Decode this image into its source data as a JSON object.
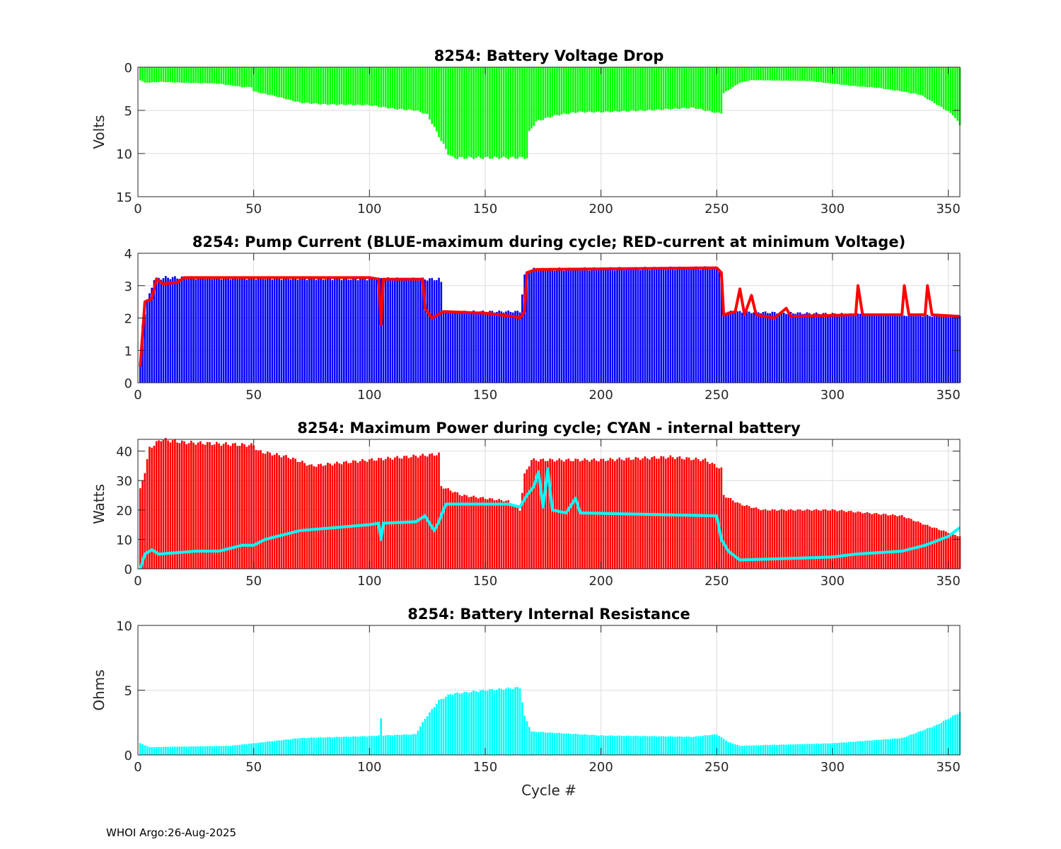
{
  "footer": "WHOI Argo:26-Aug-2025",
  "chart_data": [
    {
      "type": "bar",
      "title": "8254: Battery Voltage Drop",
      "ylabel": "Volts",
      "xlabel": "",
      "xlim": [
        0,
        355
      ],
      "ylim": [
        0,
        15
      ],
      "y_reversed": true,
      "xticks": [
        0,
        50,
        100,
        150,
        200,
        250,
        300,
        350
      ],
      "yticks": [
        0,
        5,
        10,
        15
      ],
      "grid": true,
      "series": [
        {
          "name": "Voltage drop",
          "kind": "bar",
          "color": "#00ff00",
          "points": [
            [
              1,
              1.5
            ],
            [
              3,
              1.8
            ],
            [
              10,
              1.7
            ],
            [
              20,
              1.8
            ],
            [
              35,
              1.9
            ],
            [
              45,
              2.3
            ],
            [
              49,
              2.3
            ],
            [
              50,
              2.8
            ],
            [
              60,
              3.4
            ],
            [
              70,
              4.1
            ],
            [
              80,
              4.3
            ],
            [
              100,
              4.4
            ],
            [
              110,
              4.8
            ],
            [
              120,
              5
            ],
            [
              125,
              5.5
            ],
            [
              128,
              7
            ],
            [
              131,
              8.5
            ],
            [
              134,
              10
            ],
            [
              136,
              10.5
            ],
            [
              168,
              10.5
            ],
            [
              169,
              7.5
            ],
            [
              172,
              6.3
            ],
            [
              180,
              5.6
            ],
            [
              190,
              5.2
            ],
            [
              200,
              5.2
            ],
            [
              220,
              5
            ],
            [
              240,
              4.7
            ],
            [
              245,
              5
            ],
            [
              250,
              5.3
            ],
            [
              252,
              5.3
            ],
            [
              253,
              3
            ],
            [
              260,
              1.8
            ],
            [
              265,
              1.5
            ],
            [
              290,
              1.6
            ],
            [
              300,
              1.9
            ],
            [
              310,
              2.2
            ],
            [
              320,
              2.4
            ],
            [
              330,
              2.8
            ],
            [
              338,
              3.2
            ],
            [
              345,
              4.3
            ],
            [
              352,
              5.5
            ],
            [
              355,
              6.7
            ]
          ]
        }
      ]
    },
    {
      "type": "bar",
      "title": "8254: Pump Current (BLUE-maximum during cycle; RED-current at minimum Voltage)",
      "ylabel": "",
      "xlabel": "",
      "xlim": [
        0,
        355
      ],
      "ylim": [
        0,
        4
      ],
      "xticks": [
        0,
        50,
        100,
        150,
        200,
        250,
        300,
        350
      ],
      "yticks": [
        0,
        1,
        2,
        3,
        4
      ],
      "grid": true,
      "series": [
        {
          "name": "Maximum during cycle",
          "kind": "bar",
          "color": "#0000ff",
          "points": [
            [
              1,
              0.5
            ],
            [
              2,
              1.8
            ],
            [
              4,
              2.5
            ],
            [
              7,
              3.2
            ],
            [
              12,
              3.25
            ],
            [
              130,
              3.2
            ],
            [
              131,
              3.1
            ],
            [
              132,
              2.2
            ],
            [
              165,
              2.2
            ],
            [
              167,
              3.3
            ],
            [
              170,
              3.5
            ],
            [
              250,
              3.55
            ],
            [
              252,
              3.4
            ],
            [
              253,
              2.2
            ],
            [
              355,
              2.05
            ]
          ]
        },
        {
          "name": "Current at minimum voltage",
          "kind": "line",
          "color": "#ff0000",
          "points": [
            [
              1,
              0.5
            ],
            [
              3,
              2.5
            ],
            [
              6,
              2.6
            ],
            [
              8,
              3.2
            ],
            [
              11,
              3.05
            ],
            [
              17,
              3.1
            ],
            [
              20,
              3.25
            ],
            [
              50,
              3.25
            ],
            [
              100,
              3.25
            ],
            [
              104,
              3.2
            ],
            [
              105,
              1.8
            ],
            [
              106,
              3.2
            ],
            [
              123,
              3.2
            ],
            [
              124,
              2.3
            ],
            [
              127,
              2.0
            ],
            [
              132,
              2.2
            ],
            [
              150,
              2.15
            ],
            [
              162,
              2.05
            ],
            [
              165,
              2.0
            ],
            [
              167,
              2.2
            ],
            [
              168,
              3.4
            ],
            [
              172,
              3.5
            ],
            [
              250,
              3.55
            ],
            [
              252,
              3.4
            ],
            [
              253,
              2.1
            ],
            [
              258,
              2.2
            ],
            [
              260,
              2.9
            ],
            [
              262,
              2.1
            ],
            [
              265,
              2.7
            ],
            [
              267,
              2.1
            ],
            [
              275,
              2.0
            ],
            [
              280,
              2.3
            ],
            [
              282,
              2.05
            ],
            [
              310,
              2.1
            ],
            [
              311,
              3.0
            ],
            [
              313,
              2.1
            ],
            [
              330,
              2.1
            ],
            [
              331,
              3.0
            ],
            [
              333,
              2.1
            ],
            [
              340,
              2.1
            ],
            [
              341,
              3.0
            ],
            [
              343,
              2.1
            ],
            [
              355,
              2.05
            ]
          ]
        }
      ]
    },
    {
      "type": "bar",
      "title": "8254: Maximum Power during cycle; CYAN - internal battery",
      "ylabel": "Watts",
      "xlabel": "",
      "xlim": [
        0,
        355
      ],
      "ylim": [
        0,
        44
      ],
      "xticks": [
        0,
        50,
        100,
        150,
        200,
        250,
        300,
        350
      ],
      "yticks": [
        0,
        10,
        20,
        30,
        40
      ],
      "grid": true,
      "series": [
        {
          "name": "Maximum power",
          "kind": "bar",
          "color": "#ff0000",
          "points": [
            [
              1,
              27
            ],
            [
              3,
              33
            ],
            [
              5,
              41
            ],
            [
              10,
              44
            ],
            [
              20,
              43
            ],
            [
              50,
              42
            ],
            [
              52,
              40
            ],
            [
              65,
              38
            ],
            [
              75,
              35
            ],
            [
              100,
              37
            ],
            [
              130,
              39
            ],
            [
              131,
              28
            ],
            [
              140,
              25
            ],
            [
              160,
              23
            ],
            [
              165,
              20
            ],
            [
              167,
              32
            ],
            [
              170,
              37
            ],
            [
              200,
              37
            ],
            [
              230,
              38
            ],
            [
              245,
              37
            ],
            [
              252,
              34
            ],
            [
              253,
              25
            ],
            [
              260,
              22
            ],
            [
              270,
              20
            ],
            [
              300,
              20
            ],
            [
              330,
              18
            ],
            [
              340,
              15
            ],
            [
              355,
              11
            ]
          ]
        },
        {
          "name": "Internal battery",
          "kind": "line",
          "color": "#00ffff",
          "points": [
            [
              1,
              0
            ],
            [
              3,
              5
            ],
            [
              6,
              6.5
            ],
            [
              9,
              5
            ],
            [
              25,
              6
            ],
            [
              35,
              6
            ],
            [
              45,
              8
            ],
            [
              50,
              8
            ],
            [
              55,
              10
            ],
            [
              70,
              13
            ],
            [
              100,
              15
            ],
            [
              104,
              15.5
            ],
            [
              105,
              10
            ],
            [
              106,
              15.5
            ],
            [
              120,
              16
            ],
            [
              124,
              18
            ],
            [
              128,
              13
            ],
            [
              130,
              16
            ],
            [
              133,
              22
            ],
            [
              160,
              22
            ],
            [
              165,
              21
            ],
            [
              168,
              25
            ],
            [
              171,
              28
            ],
            [
              173,
              33
            ],
            [
              175,
              21
            ],
            [
              177,
              34
            ],
            [
              179,
              20
            ],
            [
              185,
              19
            ],
            [
              189,
              24
            ],
            [
              191,
              19
            ],
            [
              250,
              18
            ],
            [
              252,
              10
            ],
            [
              255,
              6
            ],
            [
              260,
              3
            ],
            [
              300,
              4
            ],
            [
              310,
              5
            ],
            [
              330,
              6
            ],
            [
              340,
              8
            ],
            [
              350,
              11
            ],
            [
              355,
              14
            ]
          ]
        }
      ]
    },
    {
      "type": "bar",
      "title": "8254: Battery Internal Resistance",
      "ylabel": "Ohms",
      "xlabel": "Cycle #",
      "xlim": [
        0,
        355
      ],
      "ylim": [
        0,
        10
      ],
      "xticks": [
        0,
        50,
        100,
        150,
        200,
        250,
        300,
        350
      ],
      "yticks": [
        0,
        5,
        10
      ],
      "grid": true,
      "series": [
        {
          "name": "Internal resistance",
          "kind": "bar",
          "color": "#00ffff",
          "points": [
            [
              1,
              0.9
            ],
            [
              5,
              0.6
            ],
            [
              40,
              0.7
            ],
            [
              50,
              0.9
            ],
            [
              70,
              1.3
            ],
            [
              100,
              1.45
            ],
            [
              104,
              1.5
            ],
            [
              105,
              2.8
            ],
            [
              106,
              1.5
            ],
            [
              120,
              1.6
            ],
            [
              124,
              2.8
            ],
            [
              130,
              4.2
            ],
            [
              135,
              4.7
            ],
            [
              150,
              5
            ],
            [
              165,
              5.2
            ],
            [
              167,
              3
            ],
            [
              170,
              1.8
            ],
            [
              200,
              1.5
            ],
            [
              240,
              1.4
            ],
            [
              250,
              1.6
            ],
            [
              255,
              1
            ],
            [
              260,
              0.7
            ],
            [
              300,
              0.9
            ],
            [
              330,
              1.3
            ],
            [
              345,
              2.3
            ],
            [
              355,
              3.3
            ]
          ]
        }
      ]
    }
  ]
}
